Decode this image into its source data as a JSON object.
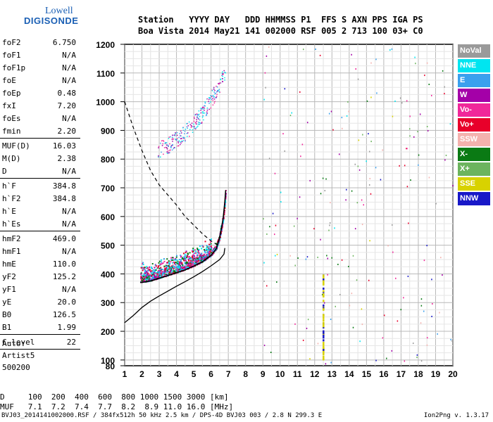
{
  "logo": {
    "line1": "Lowell",
    "line2": "DIGISONDE"
  },
  "header": {
    "line1": "Station   YYYY DAY   DDD HHMMSS P1  FFS S AXN PPS IGA PS",
    "line2": "Boa Vista 2014 May21 141 002000 RSF 005 2 713 100 03+ C0"
  },
  "params": [
    {
      "name": "foF2",
      "value": "6.750"
    },
    {
      "name": "foF1",
      "value": "N/A"
    },
    {
      "name": "foF1p",
      "value": "N/A"
    },
    {
      "name": "foE",
      "value": "N/A"
    },
    {
      "name": "foEp",
      "value": "0.48"
    },
    {
      "name": "fxI",
      "value": "7.20"
    },
    {
      "name": "foEs",
      "value": "N/A"
    },
    {
      "name": "fmin",
      "value": "2.20"
    },
    {
      "sep": true
    },
    {
      "name": "MUF(D)",
      "value": "16.03"
    },
    {
      "name": "M(D)",
      "value": "2.38"
    },
    {
      "name": "D",
      "value": "N/A"
    },
    {
      "sep": true
    },
    {
      "name": "h`F",
      "value": "384.8"
    },
    {
      "name": "h`F2",
      "value": "384.8"
    },
    {
      "name": "h`E",
      "value": "N/A"
    },
    {
      "name": "h`Es",
      "value": "N/A"
    },
    {
      "sep": true
    },
    {
      "name": "hmF2",
      "value": "469.0"
    },
    {
      "name": "hmF1",
      "value": "N/A"
    },
    {
      "name": "hmE",
      "value": "110.0"
    },
    {
      "name": "yF2",
      "value": "125.2"
    },
    {
      "name": "yF1",
      "value": "N/A"
    },
    {
      "name": "yE",
      "value": "20.0"
    },
    {
      "name": "B0",
      "value": "126.5"
    },
    {
      "name": "B1",
      "value": "1.99"
    },
    {
      "sep": true
    },
    {
      "name": "C-level",
      "value": "22"
    },
    {
      "sep": true
    }
  ],
  "auto": {
    "line1": "Auto:",
    "line2": "Artist5",
    "line3": "500200"
  },
  "legend": [
    {
      "label": "NoVal",
      "color": "#9a9a9a"
    },
    {
      "label": "NNE",
      "color": "#00e5f0"
    },
    {
      "label": "E",
      "color": "#3aa0ee"
    },
    {
      "label": "W",
      "color": "#a400a8"
    },
    {
      "label": "Vo-",
      "color": "#f0289a"
    },
    {
      "label": "Vo+",
      "color": "#e8002a"
    },
    {
      "label": "SSW",
      "color": "#f4b2ae"
    },
    {
      "label": "X-",
      "color": "#0a7a14"
    },
    {
      "label": "X+",
      "color": "#6cb45e"
    },
    {
      "label": "SSE",
      "color": "#d8d200"
    },
    {
      "label": "NNW",
      "color": "#1818c8"
    }
  ],
  "muf_table": {
    "d_label": "D",
    "d_values": "100  200  400  600  800 1000 1500 3000 [km]",
    "muf_label": "MUF",
    "muf_values": "7.1  7.2  7.4  7.7  8.2  8.9 11.0 16.0 [MHz]"
  },
  "footer": {
    "left": "BVJ03_2014141002000.RSF / 384fx512h 50 kHz 2.5 km / DPS-4D BVJ03 003 / 2.8 N 299.3 E",
    "right": "Ion2Png v. 1.3.17"
  },
  "chart_data": {
    "type": "scatter",
    "title": "",
    "xlabel": "",
    "ylabel": "",
    "xlim": [
      1,
      20
    ],
    "ylim": [
      80,
      1200
    ],
    "x_ticks": [
      1,
      2,
      3,
      4,
      5,
      6,
      7,
      8,
      9,
      10,
      11,
      12,
      13,
      14,
      15,
      16,
      17,
      18,
      19,
      20
    ],
    "y_ticks": [
      80,
      100,
      200,
      300,
      400,
      500,
      600,
      700,
      800,
      900,
      1000,
      1100,
      1200
    ],
    "grid": true,
    "trace_o": [
      [
        1.9,
        378
      ],
      [
        2.2,
        380
      ],
      [
        2.6,
        385
      ],
      [
        3.0,
        393
      ],
      [
        3.5,
        402
      ],
      [
        4.0,
        412
      ],
      [
        4.5,
        422
      ],
      [
        5.0,
        435
      ],
      [
        5.5,
        450
      ],
      [
        6.0,
        472
      ],
      [
        6.3,
        495
      ],
      [
        6.5,
        535
      ],
      [
        6.7,
        600
      ],
      [
        6.8,
        660
      ],
      [
        6.85,
        700
      ]
    ],
    "trace_x": [
      [
        2.9,
        830
      ],
      [
        3.5,
        850
      ],
      [
        4.0,
        870
      ],
      [
        4.5,
        895
      ],
      [
        5.0,
        925
      ],
      [
        5.5,
        960
      ],
      [
        6.0,
        1010
      ],
      [
        6.5,
        1060
      ],
      [
        6.8,
        1100
      ]
    ],
    "profile_curve": [
      [
        1.0,
        230
      ],
      [
        1.5,
        255
      ],
      [
        2.0,
        283
      ],
      [
        2.5,
        305
      ],
      [
        3.0,
        323
      ],
      [
        3.5,
        340
      ],
      [
        4.0,
        357
      ],
      [
        4.5,
        373
      ],
      [
        5.0,
        390
      ],
      [
        5.5,
        408
      ],
      [
        6.0,
        428
      ],
      [
        6.5,
        450
      ],
      [
        6.75,
        469
      ],
      [
        6.8,
        490
      ]
    ],
    "dashed_curve": [
      [
        1.0,
        1000
      ],
      [
        1.5,
        910
      ],
      [
        2.0,
        830
      ],
      [
        2.5,
        760
      ],
      [
        3.0,
        710
      ],
      [
        3.5,
        675
      ],
      [
        4.0,
        640
      ],
      [
        4.5,
        600
      ],
      [
        5.0,
        570
      ],
      [
        5.5,
        540
      ],
      [
        6.0,
        515
      ],
      [
        6.4,
        500
      ]
    ]
  }
}
